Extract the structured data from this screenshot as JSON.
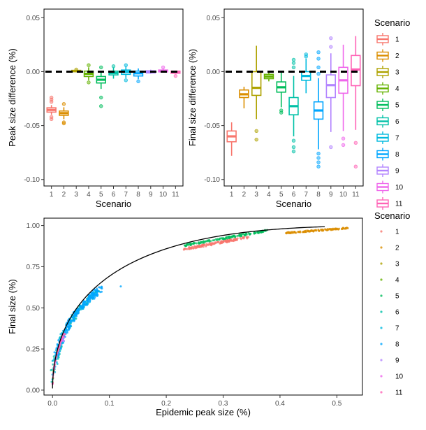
{
  "scenario_colors": [
    "#F8766D",
    "#DB8E00",
    "#AEA200",
    "#64B200",
    "#00BD5C",
    "#00C1A7",
    "#00BADE",
    "#00A6FF",
    "#B385FF",
    "#EF67EB",
    "#FF63B6"
  ],
  "chart_data": [
    {
      "id": "peak",
      "type": "box",
      "xlabel": "Scenario",
      "ylabel": "Peak size difference (%)",
      "categories": [
        "1",
        "2",
        "3",
        "4",
        "5",
        "6",
        "7",
        "8",
        "9",
        "10",
        "11"
      ],
      "ylim": [
        -0.106,
        0.058
      ],
      "yticks": [
        0.05,
        0.0,
        -0.05,
        -0.1
      ],
      "ytick_labels": [
        "0.05",
        "0.00",
        "-0.05",
        "-0.10"
      ],
      "reference_line": 0,
      "boxes": [
        {
          "q1": -0.0375,
          "median": -0.0355,
          "q3": -0.0335,
          "lo": -0.04,
          "hi": -0.031,
          "outliers": [
            -0.024,
            -0.026,
            -0.028,
            -0.042,
            -0.044
          ]
        },
        {
          "q1": -0.0405,
          "median": -0.0385,
          "q3": -0.0365,
          "lo": -0.044,
          "hi": -0.033,
          "outliers": [
            -0.03,
            -0.047,
            -0.048
          ]
        },
        {
          "q1": 0.0,
          "median": 0.0005,
          "q3": 0.0012,
          "lo": -0.0005,
          "hi": 0.0018,
          "outliers": [
            0.002
          ]
        },
        {
          "q1": -0.0045,
          "median": -0.002,
          "q3": 0.0005,
          "lo": -0.008,
          "hi": 0.004,
          "outliers": [
            0.006,
            -0.01
          ]
        },
        {
          "q1": -0.0105,
          "median": -0.0075,
          "q3": -0.0045,
          "lo": -0.016,
          "hi": 0.0,
          "outliers": [
            -0.024,
            -0.032,
            0.004
          ]
        },
        {
          "q1": -0.003,
          "median": -0.0012,
          "q3": 0.0005,
          "lo": -0.0065,
          "hi": 0.004,
          "outliers": [
            0.005
          ]
        },
        {
          "q1": -0.0025,
          "median": -0.0002,
          "q3": 0.0015,
          "lo": -0.006,
          "hi": 0.005,
          "outliers": [
            0.006,
            -0.008
          ]
        },
        {
          "q1": -0.004,
          "median": -0.0015,
          "q3": 0.0005,
          "lo": -0.007,
          "hi": 0.003,
          "outliers": [
            -0.009
          ]
        },
        {
          "q1": -0.0012,
          "median": 0.0,
          "q3": 0.0008,
          "lo": -0.002,
          "hi": 0.0018,
          "outliers": []
        },
        {
          "q1": -0.0002,
          "median": 0.0005,
          "q3": 0.0015,
          "lo": -0.001,
          "hi": 0.003,
          "outliers": [
            0.004
          ]
        },
        {
          "q1": -0.0015,
          "median": -0.0002,
          "q3": 0.0005,
          "lo": -0.002,
          "hi": 0.001,
          "outliers": [
            -0.004
          ]
        }
      ]
    },
    {
      "id": "final",
      "type": "box",
      "xlabel": "Scenario",
      "ylabel": "Final size difference (%)",
      "categories": [
        "1",
        "2",
        "3",
        "4",
        "5",
        "6",
        "7",
        "8",
        "9",
        "10",
        "11"
      ],
      "ylim": [
        -0.106,
        0.058
      ],
      "yticks": [
        0.05,
        0.0,
        -0.05,
        -0.1
      ],
      "ytick_labels": [
        "0.05",
        "0.00",
        "-0.05",
        "-0.10"
      ],
      "reference_line": 0,
      "boxes": [
        {
          "q1": -0.065,
          "median": -0.06,
          "q3": -0.055,
          "lo": -0.078,
          "hi": -0.047,
          "outliers": []
        },
        {
          "q1": -0.024,
          "median": -0.021,
          "q3": -0.017,
          "lo": -0.034,
          "hi": -0.014,
          "outliers": []
        },
        {
          "q1": -0.022,
          "median": -0.015,
          "q3": 0.0,
          "lo": -0.044,
          "hi": 0.024,
          "outliers": [
            -0.055,
            -0.063
          ]
        },
        {
          "q1": -0.0065,
          "median": -0.0045,
          "q3": -0.0025,
          "lo": -0.009,
          "hi": 0.0,
          "outliers": []
        },
        {
          "q1": -0.019,
          "median": -0.0145,
          "q3": -0.0095,
          "lo": -0.033,
          "hi": 0.0,
          "outliers": [
            -0.036,
            -0.038
          ]
        },
        {
          "q1": -0.04,
          "median": -0.032,
          "q3": -0.024,
          "lo": -0.06,
          "hi": -0.004,
          "outliers": [
            -0.064,
            -0.07,
            -0.074,
            0.004,
            0.008,
            0.011
          ]
        },
        {
          "q1": -0.008,
          "median": -0.004,
          "q3": 0.0,
          "lo": -0.02,
          "hi": 0.012,
          "outliers": [
            0.014,
            0.016
          ]
        },
        {
          "q1": -0.044,
          "median": -0.036,
          "q3": -0.028,
          "lo": -0.072,
          "hi": -0.006,
          "outliers": [
            -0.076,
            -0.08,
            -0.084,
            -0.088,
            -0.002,
            0.004,
            0.012,
            0.018
          ]
        },
        {
          "q1": -0.024,
          "median": -0.0125,
          "q3": -0.003,
          "lo": -0.056,
          "hi": 0.017,
          "outliers": [
            -0.07,
            0.023,
            0.031
          ]
        },
        {
          "q1": -0.02,
          "median": -0.008,
          "q3": 0.004,
          "lo": -0.055,
          "hi": 0.025,
          "outliers": [
            -0.062,
            -0.068
          ]
        },
        {
          "q1": -0.013,
          "median": 0.002,
          "q3": 0.015,
          "lo": -0.054,
          "hi": 0.033,
          "outliers": [
            -0.066,
            -0.088
          ]
        }
      ]
    },
    {
      "id": "scatter",
      "type": "scatter",
      "xlabel": "Epidemic peak size (%)",
      "ylabel": "Final size (%)",
      "xlim": [
        -0.015,
        0.545
      ],
      "ylim": [
        -0.03,
        1.045
      ],
      "xticks": [
        0.0,
        0.1,
        0.2,
        0.3,
        0.4,
        0.5
      ],
      "xtick_labels": [
        "0.0",
        "0.1",
        "0.2",
        "0.3",
        "0.4",
        "0.5"
      ],
      "yticks": [
        0.0,
        0.25,
        0.5,
        0.75,
        1.0
      ],
      "ytick_labels": [
        "0.00",
        "0.25",
        "0.50",
        "0.75",
        "1.00"
      ],
      "reference_curve": "theoretical final size vs epidemic peak size",
      "series": [
        {
          "x_range": [
            0.23,
            0.345
          ],
          "y_range": [
            0.855,
            0.93
          ],
          "n": 140,
          "spread": 0.007,
          "curve": "1"
        },
        {
          "x_range": [
            0.41,
            0.52
          ],
          "y_range": [
            0.955,
            0.985
          ],
          "n": 120,
          "spread": 0.004,
          "curve": "2"
        },
        {
          "x_range": [
            0.0,
            0.015
          ],
          "y_range": [
            0.0,
            0.28
          ],
          "n": 20,
          "spread": 0.0,
          "curve": "main"
        },
        {
          "x_range": [
            0.0,
            0.012
          ],
          "y_range": [
            0.0,
            0.25
          ],
          "n": 20,
          "spread": 0.0,
          "curve": "main"
        },
        {
          "x_range": [
            0.232,
            0.378
          ],
          "y_range": [
            0.88,
            0.97
          ],
          "n": 140,
          "spread": 0.006,
          "curve": "5"
        },
        {
          "x_range": [
            0.0,
            0.08
          ],
          "y_range": [
            0.05,
            0.6
          ],
          "n": 80,
          "spread": 0.02,
          "curve": "main"
        },
        {
          "x_range": [
            0.0,
            0.08
          ],
          "y_range": [
            0.05,
            0.6
          ],
          "n": 80,
          "spread": 0.02,
          "curve": "main"
        },
        {
          "x_range": [
            0.005,
            0.085
          ],
          "y_range": [
            0.1,
            0.64
          ],
          "n": 220,
          "spread": 0.02,
          "curve": "main"
        },
        {
          "x_range": [
            0.0,
            0.02
          ],
          "y_range": [
            0.0,
            0.3
          ],
          "n": 25,
          "spread": 0.0,
          "curve": "main"
        },
        {
          "x_range": [
            0.0,
            0.02
          ],
          "y_range": [
            0.0,
            0.32
          ],
          "n": 25,
          "spread": 0.0,
          "curve": "main"
        },
        {
          "x_range": [
            0.0,
            0.022
          ],
          "y_range": [
            0.0,
            0.34
          ],
          "n": 40,
          "spread": 0.0,
          "curve": "main"
        }
      ],
      "outlier_points": [
        {
          "x": 0.12,
          "y": 0.63,
          "series": 7
        }
      ]
    }
  ],
  "legend_box": {
    "title": "Scenario",
    "labels": [
      "1",
      "2",
      "3",
      "4",
      "5",
      "6",
      "7",
      "8",
      "9",
      "10",
      "11"
    ]
  },
  "legend_points": {
    "title": "Scenario",
    "labels": [
      "1",
      "2",
      "3",
      "4",
      "5",
      "6",
      "7",
      "8",
      "9",
      "10",
      "11"
    ]
  }
}
